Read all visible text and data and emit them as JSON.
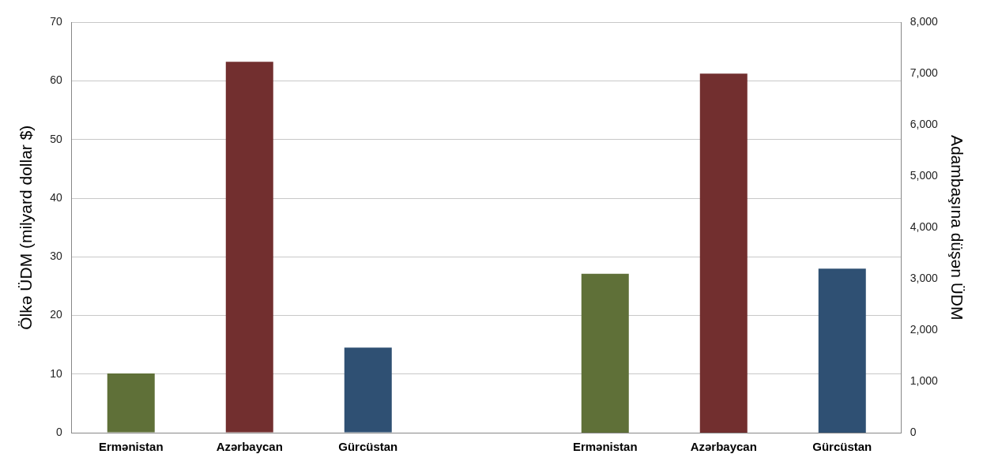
{
  "chart_data": {
    "type": "bar",
    "ylabel": "Ölkə ÜDM (milyard dollar $)",
    "y2label": "Adambaşına düşən ÜDM",
    "categories": [
      "Ermənistan",
      "Azərbaycan",
      "Gürcüstan",
      null,
      "Ermənistan",
      "Azərbaycan",
      "Gürcüstan"
    ],
    "series": [
      {
        "colors": [
          "#5f7038",
          "#722f2f",
          "#2f5073",
          "#5f7038",
          "#722f2f",
          "#2f5073",
          "#2f5073"
        ],
        "values": [
          10.1,
          63.3,
          14.5,
          null,
          null,
          null,
          null
        ]
      },
      {
        "axis": "y2",
        "colors": [
          "#5f7038",
          "#722f2f",
          "#2f5073",
          "#5f7038",
          "#5f7038",
          "#722f2f",
          "#2f5073"
        ],
        "values": [
          null,
          null,
          null,
          null,
          3100,
          7000,
          3200
        ]
      }
    ],
    "ylim": [
      0,
      70
    ],
    "yticks": [
      0,
      10,
      20,
      30,
      40,
      50,
      60,
      70
    ],
    "y2lim": [
      0,
      8000
    ],
    "y2ticks": [
      {
        "value": 0,
        "label": "0"
      },
      {
        "value": 1000,
        "label": "1,000"
      },
      {
        "value": 2000,
        "label": "2,000"
      },
      {
        "value": 3000,
        "label": "3,000"
      },
      {
        "value": 4000,
        "label": "4,000"
      },
      {
        "value": 5000,
        "label": "5,000"
      },
      {
        "value": 6000,
        "label": "6,000"
      },
      {
        "value": 7000,
        "label": "7,000"
      },
      {
        "value": 8000,
        "label": "8,000"
      }
    ],
    "grid": "y",
    "legend": false
  }
}
